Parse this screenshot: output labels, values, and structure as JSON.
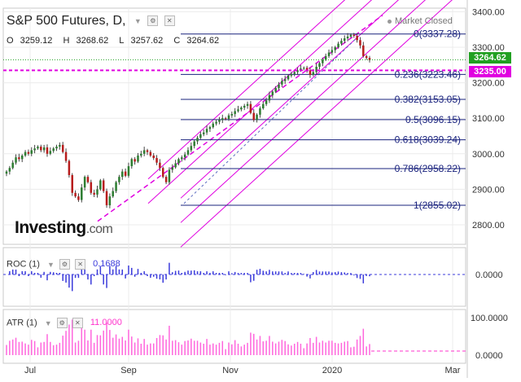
{
  "header": {
    "title": "S&P 500 Futures, D,",
    "ohlc": [
      {
        "key": "O",
        "value": "3259.12"
      },
      {
        "key": "H",
        "value": "3268.62"
      },
      {
        "key": "L",
        "value": "3257.62"
      },
      {
        "key": "C",
        "value": "3264.62"
      }
    ],
    "market_status": "Market Closed"
  },
  "logo": {
    "text": "Investing",
    "suffix": ".com"
  },
  "price_badges": {
    "current": {
      "label": "3264.62",
      "color": "#21a021"
    },
    "line": {
      "label": "3235.00",
      "color": "#e000e0"
    }
  },
  "chart_data": [
    {
      "type": "candlestick",
      "panel": "price",
      "title": "S&P 500 Futures, D,",
      "x_ticks": [
        "Jul",
        "Sep",
        "Nov",
        "2020",
        "Mar"
      ],
      "y_ticks": [
        2800,
        2900,
        3000,
        3100,
        3200,
        3300,
        3400
      ],
      "y_tick_labels": [
        "2800.00",
        "2900.00",
        "3000.00",
        "3100.00",
        "3200.00",
        "3300.00",
        "3400.00"
      ],
      "ylim": [
        2745,
        3410
      ],
      "grid": true,
      "closes": [
        2950,
        2960,
        2975,
        2990,
        2985,
        2995,
        3005,
        3000,
        3010,
        3015,
        3020,
        3010,
        3018,
        3000,
        3008,
        3015,
        3020,
        3025,
        3005,
        2980,
        2940,
        2890,
        2880,
        2870,
        2905,
        2935,
        2920,
        2890,
        2885,
        2900,
        2925,
        2895,
        2855,
        2880,
        2895,
        2920,
        2935,
        2950,
        2938,
        2965,
        2985,
        2978,
        2995,
        3000,
        3010,
        3005,
        2995,
        2988,
        2975,
        2960,
        2935,
        2920,
        2955,
        2962,
        2973,
        2985,
        2990,
        2998,
        3010,
        3022,
        3035,
        3045,
        3055,
        3060,
        3070,
        3075,
        3085,
        3090,
        3095,
        3100,
        3098,
        3108,
        3112,
        3120,
        3125,
        3130,
        3135,
        3140,
        3115,
        3095,
        3110,
        3128,
        3140,
        3150,
        3165,
        3175,
        3185,
        3195,
        3205,
        3210,
        3220,
        3225,
        3230,
        3235,
        3240,
        3242,
        3235,
        3222,
        3230,
        3245,
        3255,
        3265,
        3275,
        3285,
        3292,
        3300,
        3310,
        3318,
        3325,
        3330,
        3335,
        3332,
        3320,
        3305,
        3275,
        3270,
        3264
      ],
      "fibonacci": [
        {
          "label": "0(3337.28)",
          "value": 3337.28
        },
        {
          "label": "0.236(3223.46)",
          "value": 3223.46
        },
        {
          "label": "0.382(3153.05)",
          "value": 3153.05
        },
        {
          "label": "0.5(3096.15)",
          "value": 3096.15
        },
        {
          "label": "0.618(3039.24)",
          "value": 3039.24
        },
        {
          "label": "0.786(2958.22)",
          "value": 2958.22
        },
        {
          "label": "1(2855.02)",
          "value": 2855.02
        }
      ],
      "horizontal_lines": [
        {
          "value": 3264.62,
          "style": "dotted",
          "color": "#21a021"
        },
        {
          "value": 3235.0,
          "style": "dashed",
          "color": "#e000e0"
        }
      ],
      "colors": {
        "up": "#2e7d32",
        "down": "#b71c1c",
        "fib": "#1a237e",
        "channel": "#e000e0"
      }
    },
    {
      "type": "bar",
      "panel": "roc",
      "title": "ROC (1)",
      "current_value": "0.1688",
      "y_ticks": [
        0
      ],
      "y_tick_labels": [
        "0.0000"
      ],
      "color": "#3b3bdb"
    },
    {
      "type": "bar",
      "panel": "atr",
      "title": "ATR (1)",
      "current_value": "11.0000",
      "y_ticks": [
        0,
        100
      ],
      "y_tick_labels": [
        "0.0000",
        "100.0000"
      ],
      "color": "#ff66dd"
    }
  ]
}
